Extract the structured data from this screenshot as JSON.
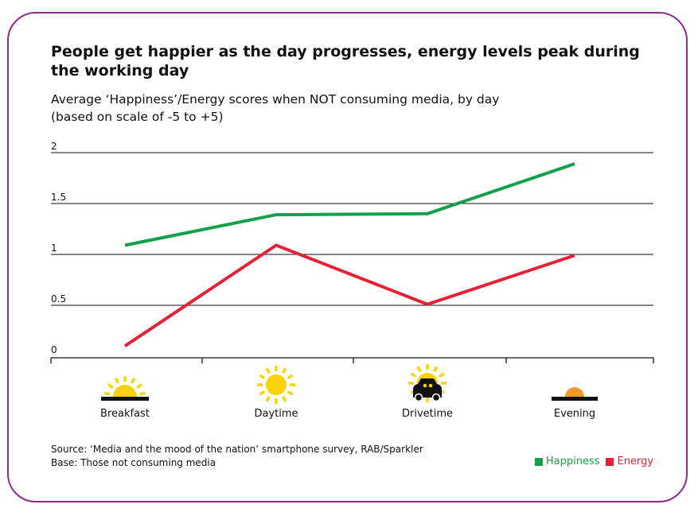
{
  "colors": {
    "frame": "#8b2c8f",
    "happiness": "#13a04a",
    "energy": "#e42233",
    "sun": "#f9d20b",
    "evening_sun": "#f49a2a"
  },
  "header": {
    "title": "People get happier as the day progresses, energy levels peak during the working day",
    "subtitle_line1": "Average ‘Happiness’/Energy scores when NOT consuming media, by day",
    "subtitle_line2": "(based on scale of -5 to +5)"
  },
  "footer": {
    "source": "Source: ‘Media and the mood of the nation’ smartphone survey, RAB/Sparkler",
    "base": "Base: Those not consuming media"
  },
  "chart_data": {
    "type": "line",
    "categories": [
      "Breakfast",
      "Daytime",
      "Drivetime",
      "Evening"
    ],
    "category_icons": [
      "sunrise-icon",
      "sun-icon",
      "car-sun-icon",
      "sunset-icon"
    ],
    "series": [
      {
        "name": "Happiness",
        "values": [
          1.09,
          1.39,
          1.4,
          1.89
        ],
        "color": "#13a04a"
      },
      {
        "name": "Energy",
        "values": [
          0.1,
          1.09,
          0.51,
          0.99
        ],
        "color": "#e42233"
      }
    ],
    "yticks": [
      "0",
      "0.5",
      "1",
      "1.5",
      "2"
    ],
    "ylim": [
      0,
      2
    ],
    "grid": true,
    "legend": "bottom-right"
  }
}
